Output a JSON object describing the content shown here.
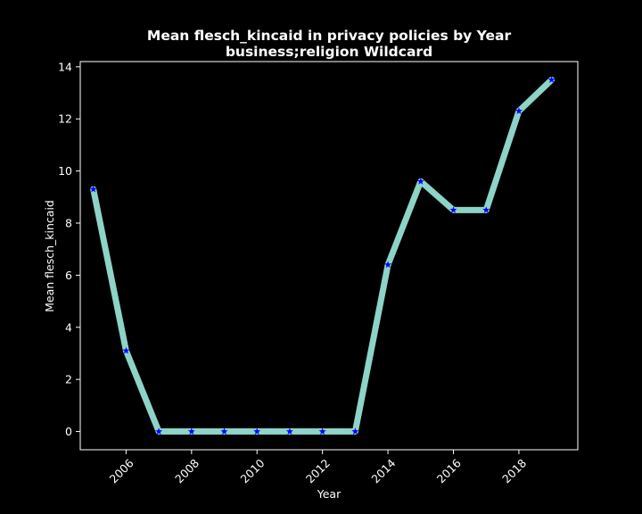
{
  "chart_data": {
    "type": "line",
    "title": "Mean flesch_kincaid in privacy policies by Year",
    "subtitle": "business;religion Wildcard",
    "xlabel": "Year",
    "ylabel": "Mean flesch_kincaid",
    "xlim": [
      2004.6,
      2019.8
    ],
    "ylim": [
      -0.7,
      14.2
    ],
    "xticks": [
      2006,
      2008,
      2010,
      2012,
      2014,
      2016,
      2018
    ],
    "yticks": [
      0,
      2,
      4,
      6,
      8,
      10,
      12,
      14
    ],
    "grid": false,
    "series": [
      {
        "x": [
          2005,
          2006,
          2007,
          2008,
          2009,
          2010,
          2011,
          2012,
          2013,
          2014,
          2015,
          2016,
          2017,
          2018,
          2019
        ],
        "values": [
          9.3,
          3.1,
          0,
          0,
          0,
          0,
          0,
          0,
          0,
          6.4,
          9.6,
          8.5,
          8.5,
          12.3,
          13.5
        ]
      }
    ],
    "colors": {
      "background": "#000000",
      "line": "#8dd3c7",
      "marker": "#0000ff",
      "axes": "#ffffff",
      "text": "#ffffff"
    },
    "line_style": "thick solid",
    "marker": "star"
  }
}
